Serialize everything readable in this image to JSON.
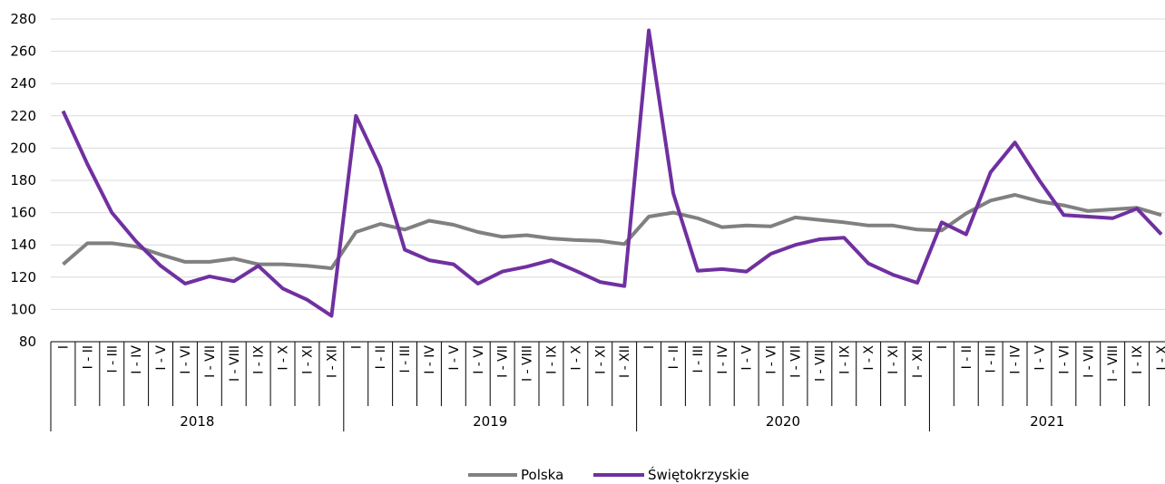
{
  "chart_data": {
    "type": "line",
    "title": "",
    "xlabel": "",
    "ylabel": "",
    "ylim": [
      80,
      280
    ],
    "yticks": [
      80,
      100,
      120,
      140,
      160,
      180,
      200,
      220,
      240,
      260,
      280
    ],
    "grid": "horizontal",
    "legend_position": "bottom",
    "years": [
      {
        "label": "2018",
        "months": [
          "I",
          "I - II",
          "I - III",
          "I - IV",
          "I - V",
          "I - VI",
          "I - VII",
          "I - VIII",
          "I - IX",
          "I - X",
          "I - XI",
          "I - XII"
        ]
      },
      {
        "label": "2019",
        "months": [
          "I",
          "I - II",
          "I - III",
          "I - IV",
          "I - V",
          "I - VI",
          "I - VII",
          "I - VIII",
          "I - IX",
          "I - X",
          "I - XI",
          "I - XII"
        ]
      },
      {
        "label": "2020",
        "months": [
          "I",
          "I - II",
          "I - III",
          "I - IV",
          "I - V",
          "I - VI",
          "I - VII",
          "I - VIII",
          "I - IX",
          "I - X",
          "I - XI",
          "I - XII"
        ]
      },
      {
        "label": "2021",
        "months": [
          "I",
          "I - II",
          "I - III",
          "I - IV",
          "I - V",
          "I - VI",
          "I - VII",
          "I - VIII",
          "I - IX",
          "I - X"
        ]
      }
    ],
    "series": [
      {
        "name": "Polska",
        "color": "#808080",
        "values": [
          128,
          141,
          141,
          139,
          134,
          129.5,
          129.5,
          131.5,
          128,
          128,
          127,
          125.5,
          148,
          153,
          149.5,
          155,
          152.5,
          148,
          145,
          146,
          144,
          143,
          142.5,
          140.5,
          157.5,
          160,
          156.5,
          151,
          152,
          151.5,
          157,
          155.5,
          154,
          152,
          152,
          149.5,
          149,
          159.5,
          167.5,
          171,
          167,
          164.5,
          161,
          162,
          163,
          158.5
        ]
      },
      {
        "name": "Świętokrzyskie",
        "color": "#7030a0",
        "values": [
          223,
          190,
          160,
          142,
          127,
          116,
          120.5,
          117.5,
          127,
          113,
          106,
          96,
          220,
          188,
          137,
          130.5,
          128,
          116,
          123.5,
          126.5,
          130.5,
          124,
          117,
          114.5,
          273,
          172,
          124,
          125,
          123.5,
          134.5,
          140,
          143.5,
          144.5,
          128.5,
          121.5,
          116.5,
          154,
          146.5,
          185,
          203.5,
          180,
          158.5,
          157.5,
          156.5,
          162.5,
          146.5
        ]
      }
    ]
  }
}
